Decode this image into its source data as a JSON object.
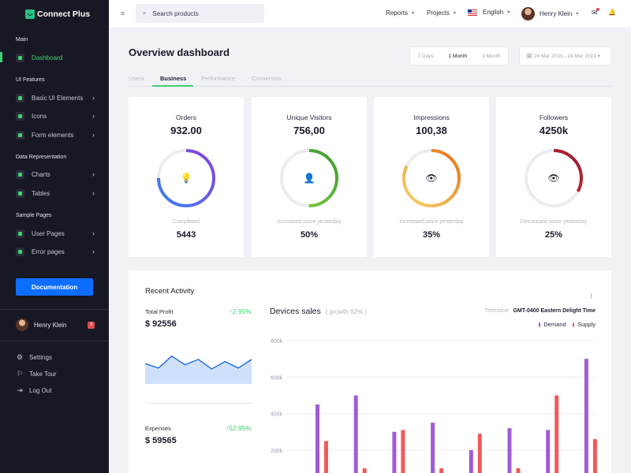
{
  "brand": {
    "name": "Connect Plus"
  },
  "sidebar": {
    "sections": [
      "Main",
      "UI Features",
      "Data Representation",
      "Sample Pages"
    ],
    "items": [
      {
        "label": "Dashboard",
        "active": true
      },
      {
        "label": "Basic UI Elements"
      },
      {
        "label": "Icons"
      },
      {
        "label": "Form elements"
      },
      {
        "label": "Charts"
      },
      {
        "label": "Tables"
      },
      {
        "label": "User Pages"
      },
      {
        "label": "Error pages"
      }
    ],
    "doc_button": "Documentation",
    "user": {
      "name": "Henry Klein",
      "badge": "3"
    },
    "bottom": [
      {
        "label": "Settings",
        "icon": "⚙"
      },
      {
        "label": "Take Tour",
        "icon": "⚐"
      },
      {
        "label": "Log Out",
        "icon": "⇥"
      }
    ]
  },
  "header": {
    "hamburger": "≡",
    "search_placeholder": "Search products",
    "nav": [
      "Reports",
      "Projects"
    ],
    "language": "English",
    "user_name": "Henry Klein",
    "mail_icon": "✉",
    "bell_icon": "🔔"
  },
  "page": {
    "title": "Overview dashboard",
    "range_tabs": [
      "7 Days",
      "1 Month",
      "3 Month"
    ],
    "selected_range": "1 Month",
    "date_range": "🗓 24 Mar 2019 - 24 Mar 2019 ▾",
    "subtabs": [
      "Users",
      "Business",
      "Performance",
      "Conversion"
    ],
    "active_subtab": "Business"
  },
  "cards": [
    {
      "title": "Orders",
      "value": "932.00",
      "icon": "💡",
      "sub_label": "Completed",
      "sub_value": "5443",
      "progress": 0.75,
      "gradient": [
        "#3b82f6",
        "#8b3fd9"
      ]
    },
    {
      "title": "Unique Visitors",
      "value": "756,00",
      "icon": "👤",
      "sub_label": "Increased since yesterday",
      "sub_value": "50%",
      "progress": 0.5,
      "gradient": [
        "#8bd44a",
        "#3a9a2e"
      ]
    },
    {
      "title": "Impressions",
      "value": "100,38",
      "icon": "👁",
      "sub_label": "Increased since yesterday",
      "sub_value": "35%",
      "progress": 0.82,
      "gradient": [
        "#f5d76e",
        "#e8701a"
      ]
    },
    {
      "title": "Followers",
      "value": "4250k",
      "icon": "👁",
      "sub_label": "Decreased since yesterday",
      "sub_value": "25%",
      "progress": 0.33,
      "gradient": [
        "#e0313a",
        "#9b1b2a"
      ]
    }
  ],
  "activity": {
    "title": "Recent Activity",
    "kebab": "⋮",
    "profit": {
      "label": "Total Profit",
      "value": "$ 92556",
      "change": "↑2.95%"
    },
    "expenses": {
      "label": "Expenses",
      "value": "$ 59565",
      "change": "↑52.95%"
    },
    "mini_series": [
      18,
      14,
      25,
      17,
      22,
      13,
      20,
      14,
      22
    ]
  },
  "chart_data": {
    "type": "bar",
    "title": "Devices sales",
    "subtitle": "( growth 62% )",
    "timezone_label": "Timezone:",
    "timezone": "GMT-0400 Eastern Delight Time",
    "series": [
      {
        "name": "Demand",
        "color": "#a05bd5",
        "values": [
          450,
          500,
          300,
          350,
          200,
          320,
          310,
          700
        ]
      },
      {
        "name": "Supply",
        "color": "#f05a5a",
        "values": [
          250,
          100,
          310,
          100,
          290,
          100,
          500,
          260
        ]
      }
    ],
    "y_ticks": [
      "800k",
      "600k",
      "400k",
      "200k"
    ],
    "y_tick_values": [
      800,
      600,
      400,
      200
    ],
    "ylim": [
      0,
      850
    ]
  }
}
